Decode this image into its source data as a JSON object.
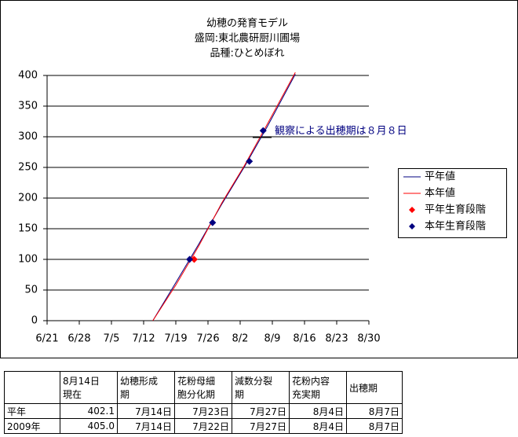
{
  "chart_data": {
    "type": "line",
    "title": [
      "幼穂の発育モデル",
      "盛岡:東北農研厨川圃場",
      "品種:ひとめぼれ"
    ],
    "xlim": [
      "6/21",
      "8/30"
    ],
    "xticks": [
      "6/21",
      "6/28",
      "7/5",
      "7/12",
      "7/19",
      "7/26",
      "8/2",
      "8/9",
      "8/16",
      "8/23",
      "8/30"
    ],
    "ylim": [
      0,
      400
    ],
    "yticks": [
      0,
      50,
      100,
      150,
      200,
      250,
      300,
      350,
      400
    ],
    "grid": true,
    "legend": "right",
    "series": [
      {
        "name": "平年値",
        "color": "#000080",
        "kind": "line",
        "x": [
          "7/14",
          "7/19",
          "7/24",
          "7/29",
          "8/3",
          "8/8",
          "8/14"
        ],
        "values": [
          0,
          62,
          125,
          190,
          252,
          318,
          402.1
        ]
      },
      {
        "name": "本年値",
        "color": "#ff0000",
        "kind": "line",
        "x": [
          "7/14",
          "7/19",
          "7/24",
          "7/29",
          "8/3",
          "8/8",
          "8/14"
        ],
        "values": [
          0,
          58,
          122,
          192,
          254,
          322,
          405.0
        ]
      },
      {
        "name": "平年生育段階",
        "color": "#ff0000",
        "kind": "marker",
        "x": [
          "7/23"
        ],
        "values": [
          100
        ]
      },
      {
        "name": "本年生育段階",
        "color": "#000080",
        "kind": "marker",
        "x": [
          "7/22",
          "7/27",
          "8/4",
          "8/7"
        ],
        "values": [
          100,
          160,
          260,
          310
        ]
      }
    ],
    "annotation": "観察による出穂期は８月８日"
  },
  "table": {
    "header": [
      "",
      "8月14日\n現在",
      "幼穂形成\n期",
      "花粉母細\n胞分化期",
      "減数分裂\n期",
      "花粉内容\n充実期",
      "出穂期"
    ],
    "rows": [
      [
        "平年",
        "402.1",
        "7月14日",
        "7月23日",
        "7月27日",
        "8月4日",
        "8月7日"
      ],
      [
        "2009年",
        "405.0",
        "7月14日",
        "7月22日",
        "7月27日",
        "8月4日",
        "8月7日"
      ]
    ]
  }
}
